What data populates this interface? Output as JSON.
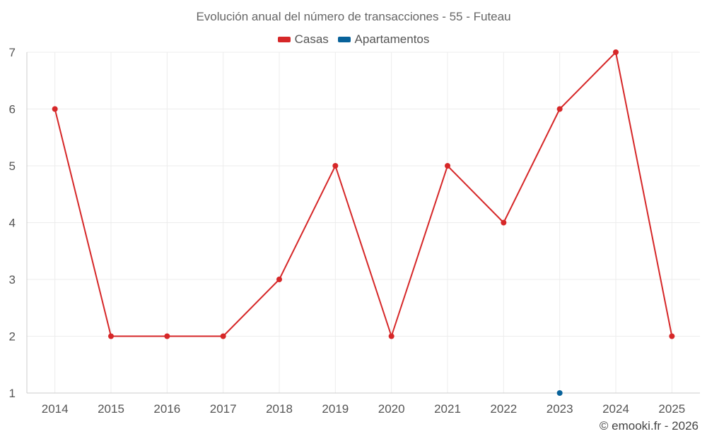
{
  "colors": {
    "casas": "#d62728",
    "apartamentos": "#08629a",
    "grid": "#ececec",
    "axis": "#cccccc"
  },
  "chart_data": {
    "type": "line",
    "title": "Evolución anual del número de transacciones - 55 - Futeau",
    "categories": [
      "2014",
      "2015",
      "2016",
      "2017",
      "2018",
      "2019",
      "2020",
      "2021",
      "2022",
      "2023",
      "2024",
      "2025"
    ],
    "series": [
      {
        "name": "Casas",
        "color": "#d62728",
        "values": [
          6,
          2,
          2,
          2,
          3,
          5,
          2,
          5,
          4,
          6,
          7,
          2
        ]
      },
      {
        "name": "Apartamentos",
        "color": "#08629a",
        "values": [
          null,
          null,
          null,
          null,
          null,
          null,
          null,
          null,
          null,
          1,
          null,
          null
        ]
      }
    ],
    "yticks": [
      "1",
      "2",
      "3",
      "4",
      "5",
      "6",
      "7"
    ],
    "ylim": [
      1,
      7
    ],
    "xlabel": "",
    "ylabel": "",
    "grid": true,
    "legend_position": "top-center"
  },
  "credit": "© emooki.fr - 2026"
}
